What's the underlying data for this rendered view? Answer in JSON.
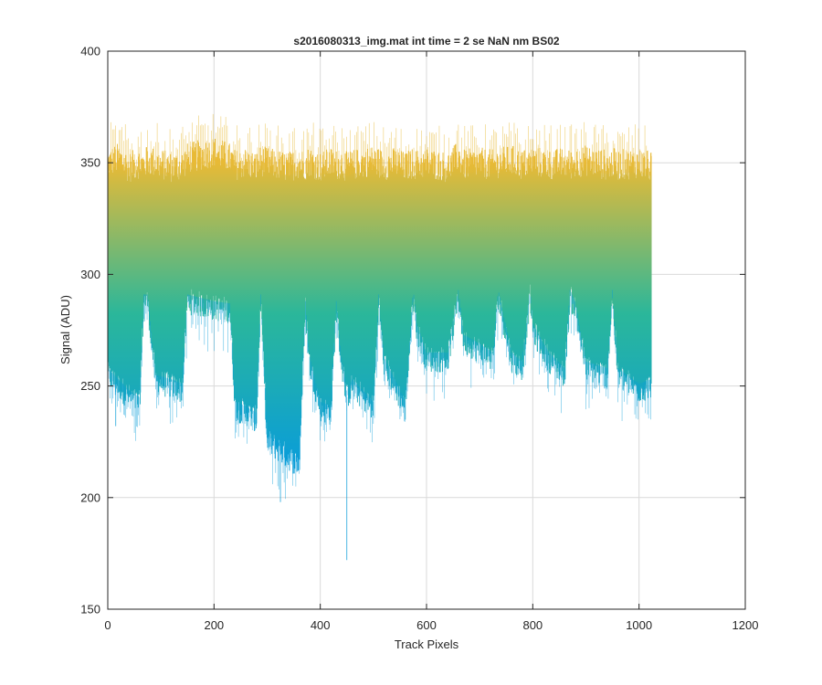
{
  "chart_data": {
    "type": "line",
    "title": "s2016080313_img.mat int time = 2 se  NaN nm BS02",
    "xlabel": "Track Pixels",
    "ylabel": "Signal (ADU)",
    "xlim": [
      0,
      1200
    ],
    "ylim": [
      150,
      400
    ],
    "xticks": [
      0,
      200,
      400,
      600,
      800,
      1000,
      1200
    ],
    "yticks": [
      150,
      200,
      250,
      300,
      350,
      400
    ],
    "xtick_labels": [
      "0",
      "200",
      "400",
      "600",
      "800",
      "1000",
      "1200"
    ],
    "ytick_labels": [
      "150",
      "200",
      "250",
      "300",
      "350",
      "400"
    ],
    "grid": true,
    "n_pixels": 1024,
    "colors": {
      "low": "#0a9dd8",
      "mid": "#2bb79a",
      "high": "#e8ba36"
    },
    "envelope": {
      "x": [
        0,
        20,
        40,
        60,
        68,
        75,
        90,
        120,
        140,
        150,
        200,
        230,
        240,
        260,
        280,
        288,
        300,
        320,
        340,
        360,
        372,
        380,
        400,
        420,
        430,
        440,
        450,
        460,
        480,
        500,
        510,
        520,
        540,
        560,
        575,
        582,
        600,
        640,
        660,
        670,
        700,
        725,
        735,
        760,
        780,
        795,
        800,
        830,
        860,
        870,
        880,
        900,
        940,
        950,
        960,
        1000,
        1022
      ],
      "top": [
        350,
        352,
        348,
        350,
        349,
        351,
        350,
        348,
        349,
        352,
        355,
        352,
        349,
        350,
        348,
        351,
        350,
        349,
        348,
        350,
        349,
        351,
        348,
        350,
        349,
        350,
        348,
        349,
        350,
        351,
        350,
        349,
        350,
        348,
        350,
        349,
        350,
        348,
        353,
        349,
        350,
        349,
        350,
        351,
        349,
        350,
        351,
        349,
        350,
        349,
        350,
        351,
        349,
        350,
        349,
        350,
        348
      ],
      "bottom": [
        255,
        250,
        245,
        242,
        288,
        288,
        252,
        250,
        248,
        288,
        285,
        284,
        240,
        238,
        235,
        288,
        225,
        222,
        218,
        215,
        285,
        260,
        240,
        238,
        285,
        260,
        245,
        250,
        245,
        240,
        288,
        260,
        250,
        240,
        290,
        275,
        262,
        262,
        290,
        270,
        266,
        262,
        290,
        262,
        258,
        290,
        275,
        262,
        255,
        290,
        285,
        258,
        255,
        290,
        255,
        248,
        250
      ]
    },
    "outliers": [
      {
        "x": 450,
        "y": 172
      },
      {
        "x": 325,
        "y": 198
      },
      {
        "x": 15,
        "y": 232
      }
    ]
  }
}
